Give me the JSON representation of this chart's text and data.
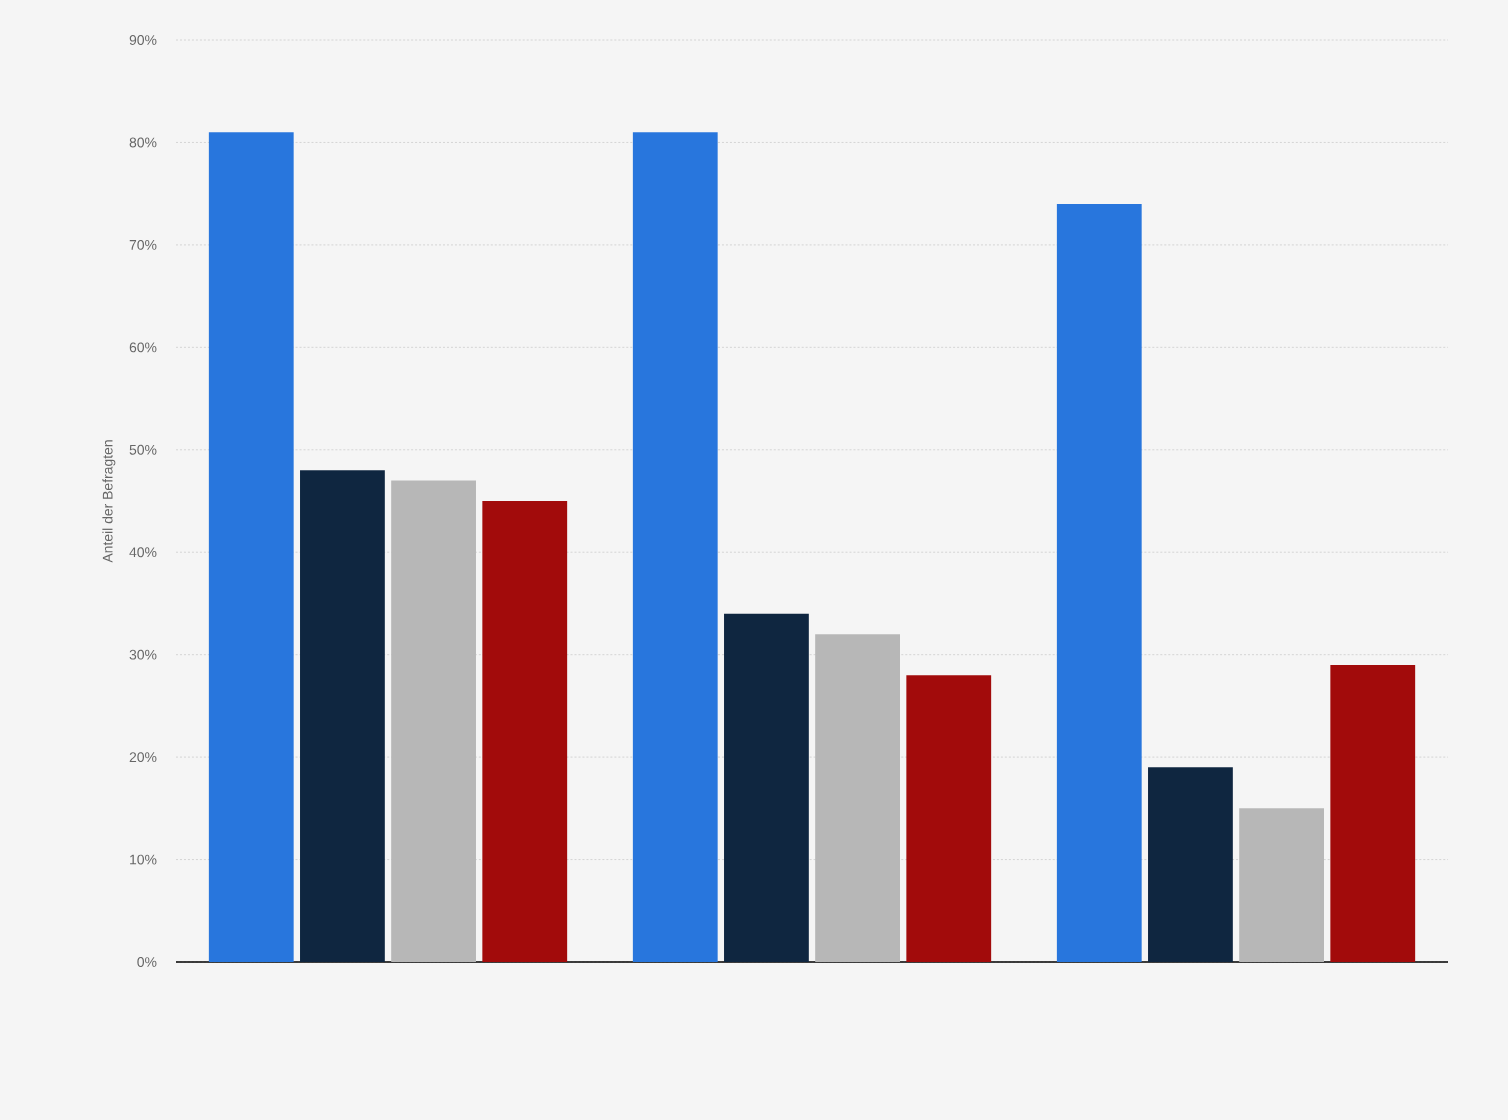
{
  "chart_data": {
    "type": "bar",
    "ylabel": "Anteil der Befragten",
    "categories": [
      null,
      null,
      null
    ],
    "series": [
      {
        "color": "#2876dd",
        "values": [
          81,
          81,
          74
        ]
      },
      {
        "color": "#0f2640",
        "values": [
          48,
          34,
          19
        ]
      },
      {
        "color": "#b7b7b7",
        "values": [
          47,
          32,
          15
        ]
      },
      {
        "color": "#a20b0b",
        "values": [
          45,
          28,
          29
        ]
      }
    ],
    "ylim": [
      0,
      90
    ],
    "yticks": [
      {
        "value": 0,
        "label": "0%"
      },
      {
        "value": 10,
        "label": "10%"
      },
      {
        "value": 20,
        "label": "20%"
      },
      {
        "value": 30,
        "label": "30%"
      },
      {
        "value": 40,
        "label": "40%"
      },
      {
        "value": 50,
        "label": "50%"
      },
      {
        "value": 60,
        "label": "60%"
      },
      {
        "value": 70,
        "label": "70%"
      },
      {
        "value": 80,
        "label": "80%"
      },
      {
        "value": 90,
        "label": "90%"
      }
    ],
    "grid": "y"
  }
}
